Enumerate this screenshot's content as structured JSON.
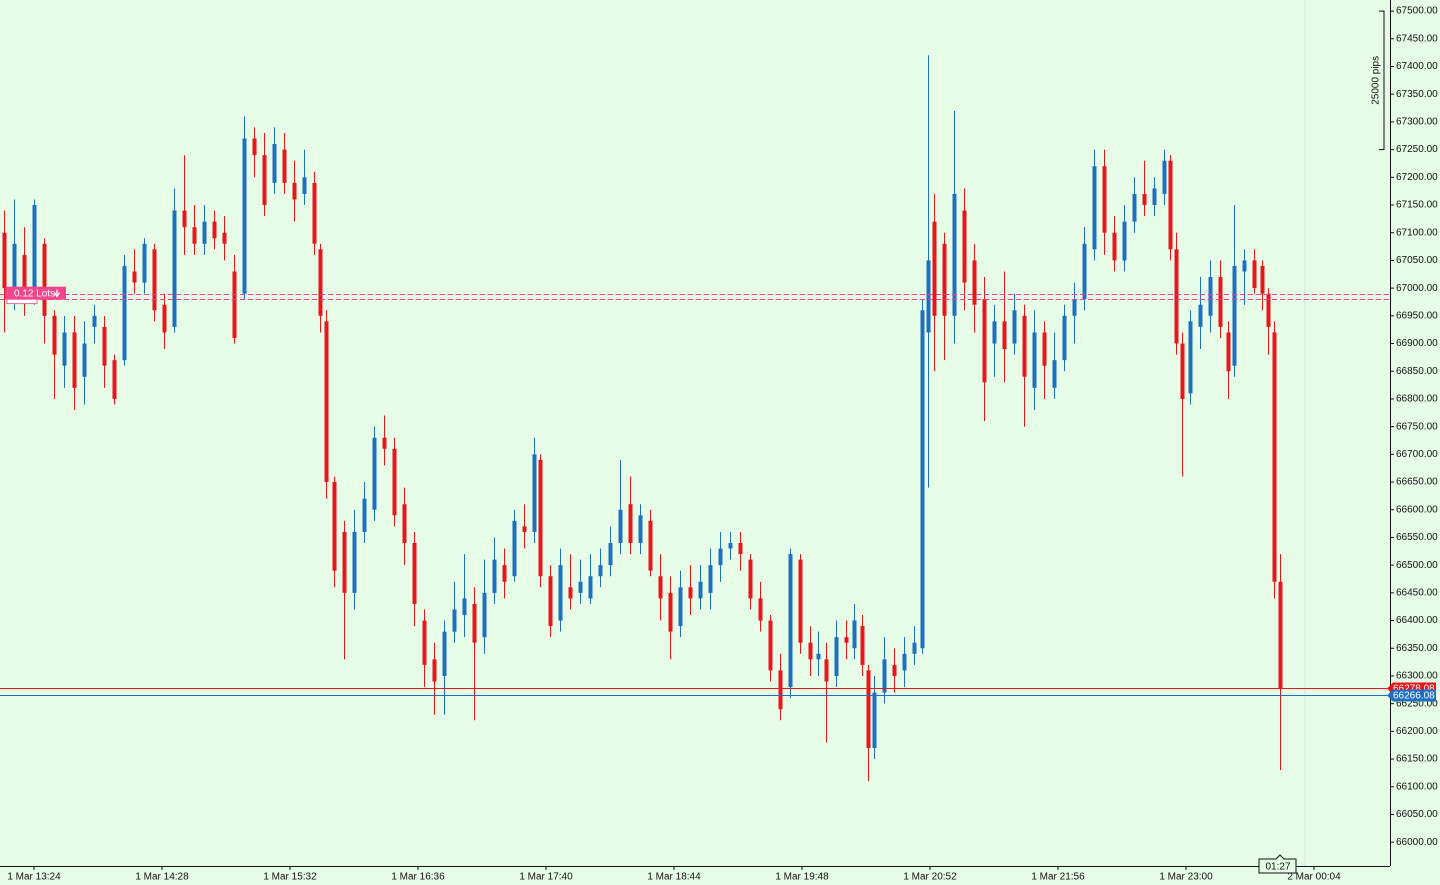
{
  "chart_data": {
    "type": "candlestick",
    "up_color": "#1f6fc0",
    "down_color": "#e8161b",
    "xlim": [
      -17,
      678
    ],
    "xticks": [
      {
        "value": 0,
        "label": "1 Mar 13:24"
      },
      {
        "value": 64,
        "label": "1 Mar 14:28"
      },
      {
        "value": 128,
        "label": "1 Mar 15:32"
      },
      {
        "value": 192,
        "label": "1 Mar 16:36"
      },
      {
        "value": 256,
        "label": "1 Mar 17:40"
      },
      {
        "value": 320,
        "label": "1 Mar 18:44"
      },
      {
        "value": 384,
        "label": "1 Mar 19:48"
      },
      {
        "value": 448,
        "label": "1 Mar 20:52"
      },
      {
        "value": 512,
        "label": "1 Mar 21:56"
      },
      {
        "value": 576,
        "label": "1 Mar 23:00"
      },
      {
        "value": 640,
        "label": "2 Mar 00:04"
      }
    ],
    "ylim": [
      65957,
      67520
    ],
    "yticks": [
      {
        "value": 66000,
        "label": "66000.00"
      },
      {
        "value": 66050,
        "label": "66050.00"
      },
      {
        "value": 66100,
        "label": "66100.00"
      },
      {
        "value": 66150,
        "label": "66150.00"
      },
      {
        "value": 66200,
        "label": "66200.00"
      },
      {
        "value": 66250,
        "label": "66250.00"
      },
      {
        "value": 66300,
        "label": "66300.00"
      },
      {
        "value": 66350,
        "label": "66350.00"
      },
      {
        "value": 66400,
        "label": "66400.00"
      },
      {
        "value": 66450,
        "label": "66450.00"
      },
      {
        "value": 66500,
        "label": "66500.00"
      },
      {
        "value": 66550,
        "label": "66550.00"
      },
      {
        "value": 66600,
        "label": "66600.00"
      },
      {
        "value": 66650,
        "label": "66650.00"
      },
      {
        "value": 66700,
        "label": "66700.00"
      },
      {
        "value": 66750,
        "label": "66750.00"
      },
      {
        "value": 66800,
        "label": "66800.00"
      },
      {
        "value": 66850,
        "label": "66850.00"
      },
      {
        "value": 66900,
        "label": "66900.00"
      },
      {
        "value": 66950,
        "label": "66950.00"
      },
      {
        "value": 67000,
        "label": "67000.00"
      },
      {
        "value": 67050,
        "label": "67050.00"
      },
      {
        "value": 67100,
        "label": "67100.00"
      },
      {
        "value": 67150,
        "label": "67150.00"
      },
      {
        "value": 67200,
        "label": "67200.00"
      },
      {
        "value": 67250,
        "label": "67250.00"
      },
      {
        "value": 67300,
        "label": "67300.00"
      },
      {
        "value": 67350,
        "label": "67350.00"
      },
      {
        "value": 67400,
        "label": "67400.00"
      },
      {
        "value": 67450,
        "label": "67450.00"
      },
      {
        "value": 67500,
        "label": "67500.00"
      }
    ],
    "x": [
      -15,
      -10,
      -5,
      0,
      5,
      10,
      15,
      20,
      25,
      30,
      35,
      40,
      45,
      50,
      55,
      60,
      65,
      70,
      75,
      80,
      85,
      90,
      95,
      100,
      105,
      110,
      115,
      120,
      125,
      130,
      135,
      140,
      143,
      146,
      150,
      155,
      160,
      165,
      170,
      175,
      180,
      185,
      190,
      195,
      200,
      205,
      210,
      215,
      220,
      225,
      230,
      235,
      240,
      245,
      250,
      253,
      258,
      263,
      268,
      273,
      278,
      283,
      288,
      293,
      298,
      303,
      308,
      313,
      318,
      323,
      328,
      333,
      338,
      343,
      348,
      353,
      358,
      363,
      368,
      373,
      378,
      383,
      388,
      392,
      396,
      401,
      406,
      410,
      414,
      417,
      420,
      425,
      430,
      435,
      440,
      444,
      447,
      450,
      455,
      460,
      465,
      470,
      475,
      480,
      485,
      490,
      495,
      500,
      505,
      510,
      515,
      520,
      525,
      530,
      535,
      540,
      545,
      550,
      555,
      560,
      565,
      568,
      571,
      574,
      578,
      583,
      588,
      593,
      597,
      600,
      605,
      610,
      614,
      617,
      620,
      623
    ],
    "open": [
      67100,
      67000,
      67060,
      67000,
      67080,
      66950,
      66860,
      66920,
      66840,
      66930,
      66930,
      66870,
      66870,
      67030,
      67010,
      67070,
      66970,
      66930,
      67140,
      67110,
      67080,
      67120,
      67100,
      67030,
      66990,
      67270,
      67240,
      67190,
      67250,
      67190,
      67170,
      67190,
      67070,
      66940,
      66650,
      66560,
      66450,
      66560,
      66600,
      66730,
      66710,
      66610,
      66540,
      66400,
      66330,
      66300,
      66380,
      66410,
      66430,
      66370,
      66450,
      66500,
      66480,
      66570,
      66560,
      66690,
      66480,
      66400,
      66460,
      66450,
      66440,
      66480,
      66500,
      66540,
      66610,
      66540,
      66580,
      66480,
      66450,
      66390,
      66460,
      66440,
      66450,
      66500,
      66530,
      66540,
      66510,
      66440,
      66400,
      66310,
      66280,
      66510,
      66360,
      66330,
      66330,
      66300,
      66370,
      66350,
      66390,
      66310,
      66170,
      66270,
      66320,
      66310,
      66340,
      66350,
      66920,
      67120,
      67080,
      66950,
      67140,
      67050,
      66980,
      66900,
      66940,
      66900,
      66950,
      66820,
      66920,
      66820,
      66870,
      66950,
      66980,
      67070,
      67220,
      67100,
      67050,
      67120,
      67170,
      67150,
      67170,
      67230,
      67070,
      66900,
      66810,
      66930,
      66950,
      67020,
      66920,
      66860,
      67030,
      67050,
      67040,
      66990,
      66920,
      66470
    ],
    "high": [
      67140,
      67160,
      67110,
      67160,
      67090,
      66960,
      66950,
      66950,
      66940,
      66970,
      66950,
      66880,
      67060,
      67070,
      67090,
      67080,
      66990,
      67180,
      67240,
      67150,
      67150,
      67140,
      67130,
      67060,
      67310,
      67290,
      67280,
      67290,
      67280,
      67230,
      67250,
      67210,
      67080,
      66960,
      66660,
      66580,
      66600,
      66650,
      66750,
      66770,
      66730,
      66640,
      66560,
      66420,
      66360,
      66400,
      66470,
      66520,
      66460,
      66510,
      66550,
      66530,
      66600,
      66610,
      66730,
      66700,
      66500,
      66530,
      66520,
      66510,
      66520,
      66530,
      66570,
      66690,
      66660,
      66610,
      66600,
      66520,
      66480,
      66490,
      66500,
      66500,
      66530,
      66560,
      66560,
      66560,
      66520,
      66470,
      66410,
      66340,
      66530,
      66520,
      66390,
      66380,
      66360,
      66400,
      66400,
      66430,
      66410,
      66320,
      66300,
      66370,
      66350,
      66370,
      66390,
      66980,
      67420,
      67170,
      67100,
      67320,
      67180,
      67080,
      67020,
      66970,
      67030,
      66990,
      66970,
      66960,
      66940,
      66920,
      66970,
      67010,
      67110,
      67250,
      67250,
      67130,
      67150,
      67200,
      67230,
      67200,
      67250,
      67240,
      67100,
      66920,
      66960,
      67020,
      67050,
      67050,
      66940,
      67150,
      67070,
      67070,
      67050,
      67000,
      66940,
      66520
    ],
    "low": [
      66920,
      66960,
      66950,
      66970,
      66900,
      66800,
      66820,
      66780,
      66790,
      66900,
      66820,
      66790,
      66860,
      66990,
      66990,
      66940,
      66890,
      66920,
      67060,
      67060,
      67060,
      67070,
      67050,
      66900,
      66980,
      67200,
      67130,
      67170,
      67170,
      67120,
      67150,
      67060,
      66920,
      66620,
      66460,
      66330,
      66420,
      66540,
      66580,
      66680,
      66570,
      66500,
      66390,
      66280,
      66230,
      66230,
      66360,
      66370,
      66220,
      66340,
      66430,
      66440,
      66470,
      66530,
      66540,
      66460,
      66370,
      66380,
      66420,
      66430,
      66430,
      66460,
      66480,
      66520,
      66520,
      66520,
      66480,
      66400,
      66330,
      66370,
      66410,
      66420,
      66420,
      66470,
      66510,
      66490,
      66420,
      66380,
      66290,
      66220,
      66260,
      66340,
      66300,
      66300,
      66180,
      66280,
      66330,
      66330,
      66300,
      66110,
      66150,
      66250,
      66270,
      66280,
      66320,
      66340,
      66640,
      66850,
      66870,
      66900,
      66960,
      66920,
      66760,
      66840,
      66830,
      66880,
      66750,
      66780,
      66800,
      66800,
      66850,
      66900,
      66960,
      67050,
      67060,
      67030,
      67030,
      67100,
      67130,
      67130,
      67150,
      67050,
      66880,
      66660,
      66790,
      66890,
      66920,
      66910,
      66800,
      66840,
      66970,
      66990,
      66960,
      66880,
      66440,
      66130
    ],
    "close": [
      67000,
      67080,
      66990,
      67150,
      66950,
      66880,
      66920,
      66820,
      66900,
      66950,
      66860,
      66800,
      67040,
      67010,
      67080,
      66960,
      66920,
      67140,
      67110,
      67080,
      67120,
      67090,
      67080,
      66910,
      67270,
      67240,
      67150,
      67260,
      67190,
      67160,
      67200,
      67080,
      66950,
      66650,
      66490,
      66450,
      66560,
      66620,
      66730,
      66710,
      66590,
      66540,
      66430,
      66320,
      66290,
      66380,
      66420,
      66440,
      66360,
      66450,
      66510,
      66470,
      66580,
      66560,
      66700,
      66480,
      66390,
      66500,
      66440,
      66470,
      66480,
      66500,
      66540,
      66600,
      66540,
      66590,
      66490,
      66440,
      66380,
      66460,
      66440,
      66470,
      66500,
      66530,
      66540,
      66520,
      66440,
      66400,
      66310,
      66240,
      66520,
      66360,
      66330,
      66340,
      66290,
      66370,
      66360,
      66400,
      66320,
      66170,
      66270,
      66330,
      66300,
      66340,
      66360,
      66960,
      67050,
      66950,
      66950,
      67170,
      67010,
      66970,
      66830,
      66940,
      66890,
      66960,
      66840,
      66920,
      66860,
      66870,
      66950,
      66980,
      67080,
      67220,
      67100,
      67050,
      67120,
      67170,
      67150,
      67180,
      67230,
      67070,
      66900,
      66800,
      66940,
      66970,
      67020,
      66930,
      66850,
      67040,
      67050,
      67000,
      66990,
      66930,
      66470,
      66278.08
    ],
    "price_lines": [
      {
        "value": 66278.08,
        "color": "#e8161b"
      },
      {
        "value": 66266.08,
        "color": "#1f6fc0"
      }
    ],
    "order": {
      "label": "0.12 Lots",
      "levels": [
        66990,
        66980
      ],
      "color": "#f0468c"
    },
    "scale": {
      "label": "25000 pips",
      "range": [
        67500,
        67250
      ]
    },
    "timer": "01:27"
  }
}
